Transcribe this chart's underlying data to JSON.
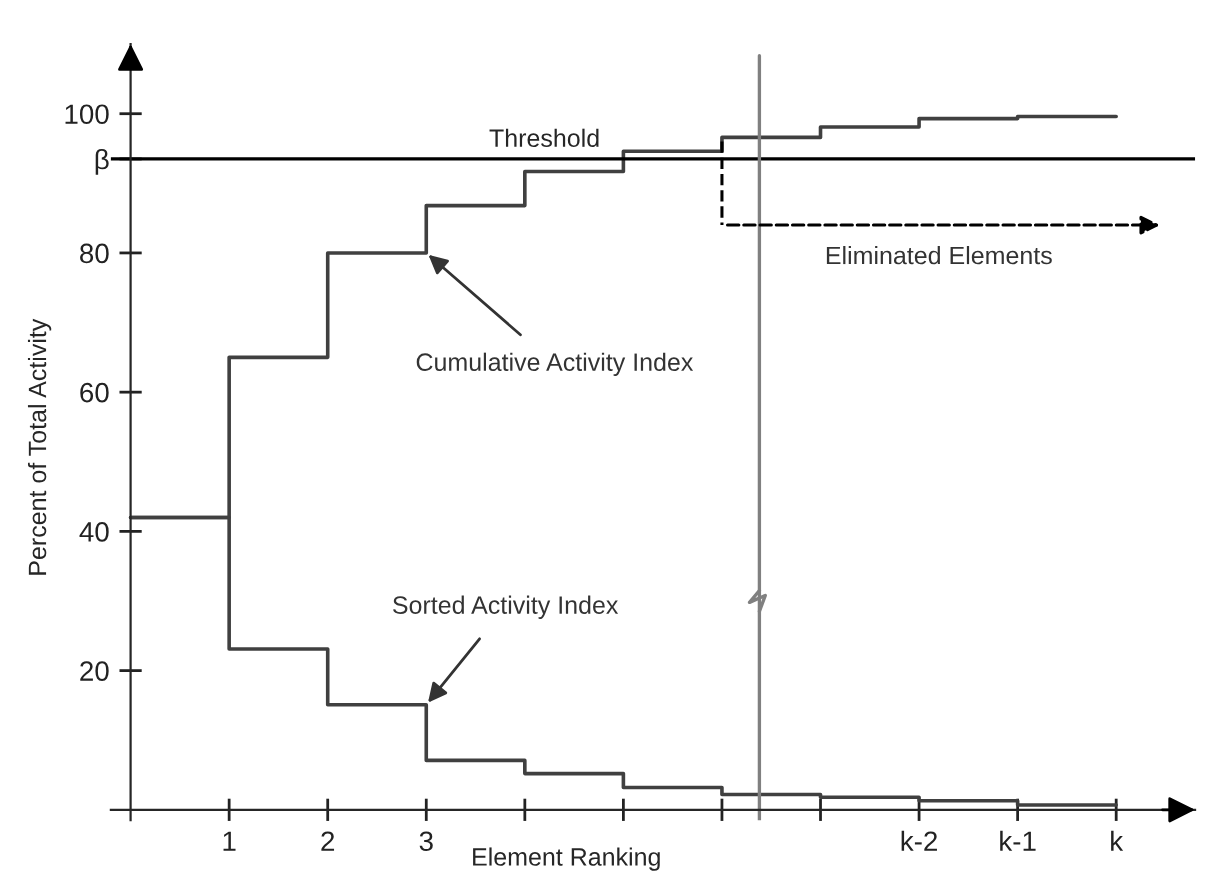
{
  "chart_data": {
    "type": "step",
    "xlabel": "Element Ranking",
    "ylabel": "Percent of Total Activity",
    "x": [
      0,
      1,
      2,
      3,
      4,
      5,
      6,
      7,
      8,
      9,
      10
    ],
    "series": [
      {
        "color": "#404040",
        "values": [
          42,
          65,
          80,
          86.8,
          91.7,
          94.6,
          96.6,
          98.1,
          99.3,
          99.6,
          99.6
        ]
      },
      {
        "color": "#404040",
        "values": [
          42,
          23.1,
          15.1,
          7.1,
          5.2,
          3.2,
          2.2,
          1.8,
          1.3,
          0.7,
          0.7
        ]
      }
    ],
    "xlim": [
      -0.2,
      10.8
    ],
    "ylim": [
      -1.5,
      110
    ],
    "xticks": [
      1,
      2,
      3,
      {
        "value": 4,
        "label": null
      },
      {
        "value": 5,
        "label": null
      },
      {
        "value": 6,
        "label": null
      },
      {
        "value": 7,
        "label": null
      },
      {
        "value": 8,
        "label": "k-2"
      },
      {
        "value": 9,
        "label": "k-1"
      },
      {
        "value": 10,
        "label": "k"
      }
    ],
    "yticks": [
      20,
      40,
      60,
      80,
      {
        "value": 93.5,
        "label": "β"
      },
      100
    ],
    "ref_lines": [
      {
        "axis": "y",
        "value": 93.5,
        "label": "Threshold",
        "color": "#000000"
      },
      {
        "axis": "x",
        "value": 6.38,
        "label": null,
        "color": "#808080"
      }
    ],
    "annotations": [
      {
        "text": "Cumulative Activity Index",
        "x": 3,
        "y": 80
      },
      {
        "text": "Sorted Activity Index",
        "x": 3,
        "y": 15.1
      },
      "Eliminated Elements"
    ],
    "grid": false,
    "line_style": "solid",
    "marker": "none"
  }
}
